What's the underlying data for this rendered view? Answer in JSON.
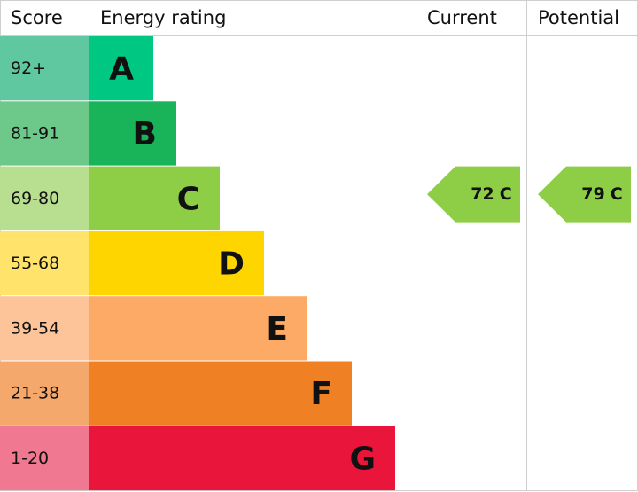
{
  "header": {
    "score": "Score",
    "energy_rating": "Energy rating",
    "current": "Current",
    "potential": "Potential"
  },
  "bands": [
    {
      "score": "92+",
      "letter": "A"
    },
    {
      "score": "81-91",
      "letter": "B"
    },
    {
      "score": "69-80",
      "letter": "C"
    },
    {
      "score": "55-68",
      "letter": "D"
    },
    {
      "score": "39-54",
      "letter": "E"
    },
    {
      "score": "21-38",
      "letter": "F"
    },
    {
      "score": "1-20",
      "letter": "G"
    }
  ],
  "current": {
    "value": 72,
    "rating": "C"
  },
  "potential": {
    "value": 79,
    "rating": "C"
  }
}
